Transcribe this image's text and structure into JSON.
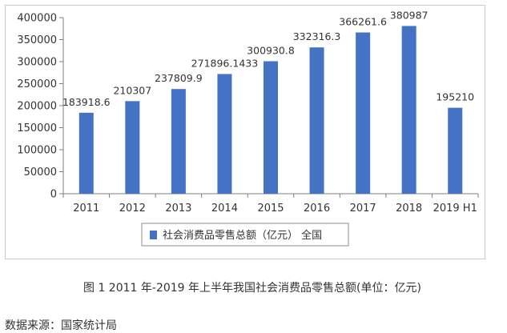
{
  "chart_data": {
    "type": "bar",
    "categories": [
      "2011",
      "2012",
      "2013",
      "2014",
      "2015",
      "2016",
      "2017",
      "2018",
      "2019 H1"
    ],
    "series": [
      {
        "name": "社会消费品零售总额（亿元） 全国",
        "values": [
          183918.6,
          210307,
          237809.9,
          271896.1433,
          300930.8,
          332316.3,
          366261.6,
          380987,
          195210
        ],
        "labels": [
          "183918.6",
          "210307",
          "237809.9",
          "271896.1433",
          "300930.8",
          "332316.3",
          "366261.6",
          "380987",
          "195210"
        ],
        "color": "#4472C4"
      }
    ],
    "ylim": [
      0,
      400000
    ],
    "yticks": [
      0,
      50000,
      100000,
      150000,
      200000,
      250000,
      300000,
      350000,
      400000
    ],
    "grid": false,
    "legend_position": "bottom"
  },
  "caption": "图 1 2011 年-2019 年上半年我国社会消费品零售总额(单位：亿元)",
  "source": "数据来源：国家统计局"
}
